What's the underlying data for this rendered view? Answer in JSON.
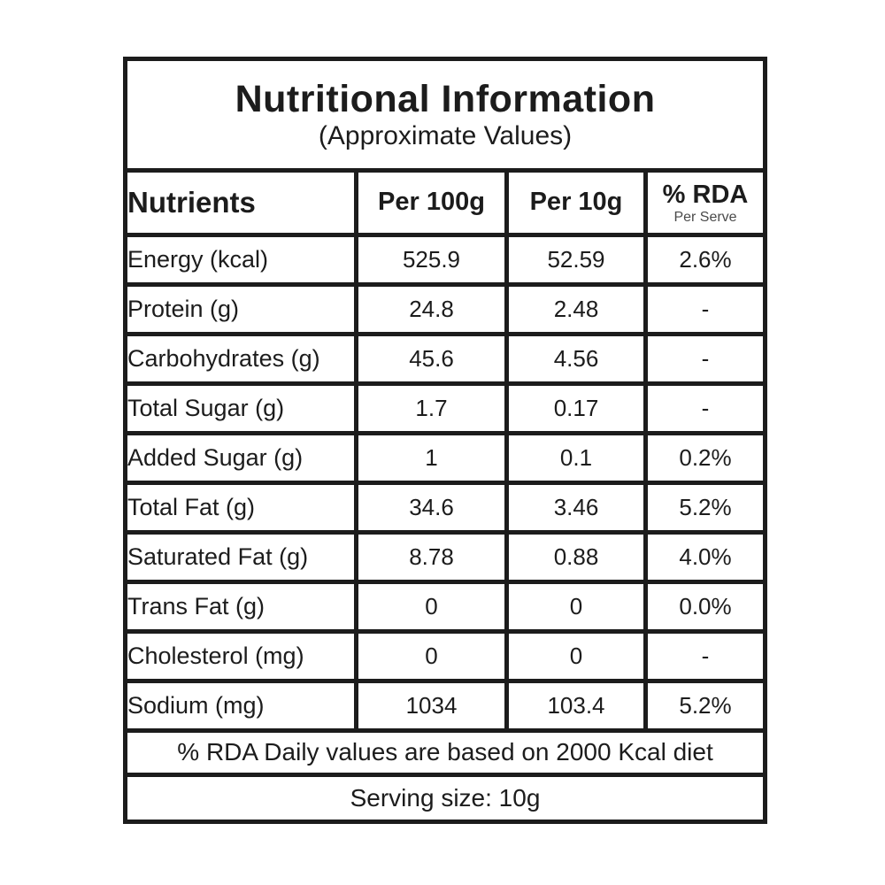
{
  "label": {
    "title": "Nutritional Information",
    "subtitle": "(Approximate Values)",
    "columns": {
      "nutrients": "Nutrients",
      "per100": "Per 100g",
      "per10": "Per 10g",
      "rda": "% RDA",
      "rda_sub": "Per Serve"
    },
    "rows": [
      {
        "nutrient": "Energy (kcal)",
        "per100": "525.9",
        "per10": "52.59",
        "rda": "2.6%"
      },
      {
        "nutrient": "Protein (g)",
        "per100": "24.8",
        "per10": "2.48",
        "rda": "-"
      },
      {
        "nutrient": "Carbohydrates (g)",
        "per100": "45.6",
        "per10": "4.56",
        "rda": "-"
      },
      {
        "nutrient": "Total Sugar (g)",
        "per100": "1.7",
        "per10": "0.17",
        "rda": "-"
      },
      {
        "nutrient": "Added Sugar (g)",
        "per100": "1",
        "per10": "0.1",
        "rda": "0.2%"
      },
      {
        "nutrient": "Total Fat (g)",
        "per100": "34.6",
        "per10": "3.46",
        "rda": "5.2%"
      },
      {
        "nutrient": "Saturated Fat (g)",
        "per100": "8.78",
        "per10": "0.88",
        "rda": "4.0%"
      },
      {
        "nutrient": "Trans Fat (g)",
        "per100": "0",
        "per10": "0",
        "rda": "0.0%"
      },
      {
        "nutrient": "Cholesterol (mg)",
        "per100": "0",
        "per10": "0",
        "rda": "-"
      },
      {
        "nutrient": "Sodium (mg)",
        "per100": "1034",
        "per10": "103.4",
        "rda": "5.2%"
      }
    ],
    "footnote": "% RDA Daily values are based on 2000 Kcal diet",
    "serving": "Serving size: 10g",
    "colors": {
      "border": "#1c1c1c",
      "text": "#1c1c1c",
      "background": "#ffffff"
    }
  }
}
